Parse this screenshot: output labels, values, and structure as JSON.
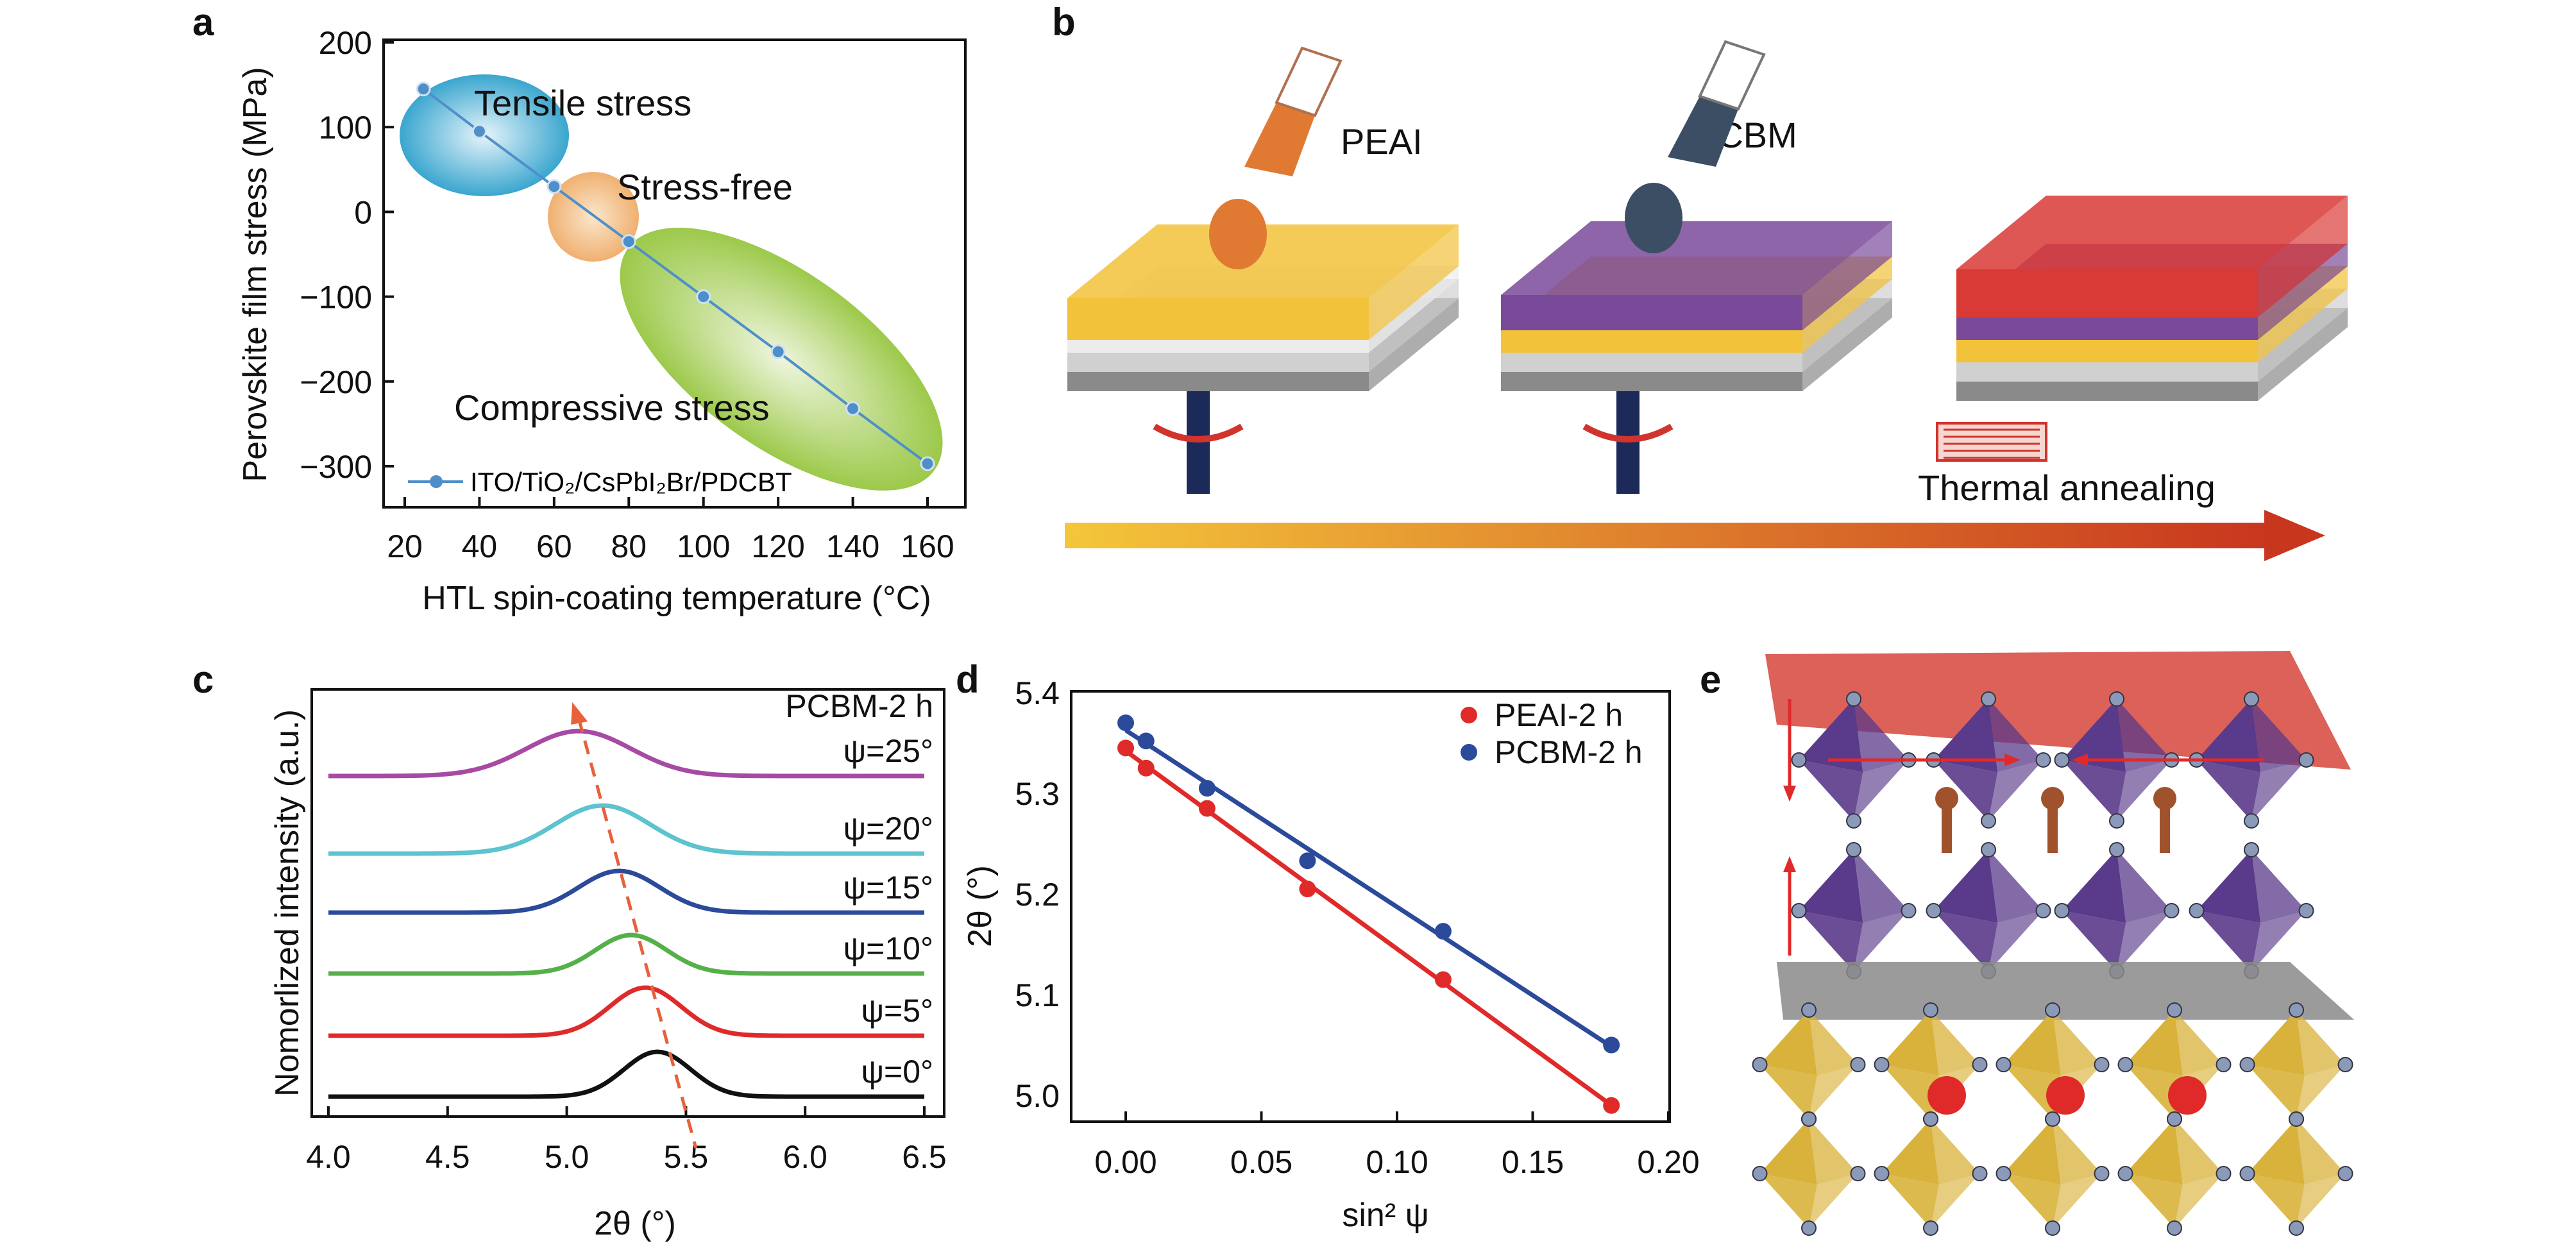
{
  "panel_labels": {
    "a": "a",
    "b": "b",
    "c": "c",
    "d": "d",
    "e": "e"
  },
  "chart_data": [
    {
      "panel": "a",
      "type": "line",
      "xlabel": "HTL spin-coating temperature (°C)",
      "ylabel": "Perovskite film stress (MPa)",
      "xlim": [
        15,
        170
      ],
      "ylim": [
        -350,
        200
      ],
      "xticks": [
        20,
        40,
        60,
        80,
        100,
        120,
        140,
        160
      ],
      "yticks": [
        200,
        100,
        0,
        -100,
        -200,
        -300
      ],
      "series": [
        {
          "name": "ITO/TiO₂/CsPbI₂Br/PDCBT",
          "color": "#4f8fc9",
          "x": [
            25,
            40,
            60,
            80,
            100,
            120,
            140,
            160
          ],
          "y": [
            145,
            95,
            30,
            -35,
            -100,
            -165,
            -232,
            -297
          ]
        }
      ],
      "annotations": {
        "tensile": "Tensile stress",
        "free": "Stress-free",
        "compressive": "Compressive stress"
      },
      "region_colors": {
        "tensile": "#3aa6cf",
        "free": "#f0b070",
        "compressive": "#9cc94a"
      },
      "legend": "bottom-left",
      "grid": false
    },
    {
      "panel": "c",
      "type": "line",
      "xlabel": "2θ (°)",
      "ylabel": "Nomorlized intensity (a.u.)",
      "xlim": [
        4.0,
        6.5
      ],
      "xticks": [
        "4.0",
        "4.5",
        "5.0",
        "5.5",
        "6.0",
        "6.5"
      ],
      "title_label": "PCBM-2 h",
      "series": [
        {
          "name": "ψ=25°",
          "color": "#a64aa4",
          "peak": 5.05
        },
        {
          "name": "ψ=20°",
          "color": "#5cc3cf",
          "peak": 5.15
        },
        {
          "name": "ψ=15°",
          "color": "#2c4a9a",
          "peak": 5.22
        },
        {
          "name": "ψ=10°",
          "color": "#55b04a",
          "peak": 5.27
        },
        {
          "name": "ψ=5°",
          "color": "#e02a2a",
          "peak": 5.33
        },
        {
          "name": "ψ=0°",
          "color": "#111111",
          "peak": 5.38
        }
      ],
      "trend_line_color": "#e8613c",
      "grid": false
    },
    {
      "panel": "d",
      "type": "scatter",
      "xlabel": "sin² ψ",
      "ylabel": "2θ (°)",
      "xlim": [
        -0.02,
        0.2
      ],
      "ylim": [
        4.975,
        5.4
      ],
      "xticks": [
        "0.00",
        "0.05",
        "0.10",
        "0.15",
        "0.20"
      ],
      "yticks": [
        "5.4",
        "5.3",
        "5.2",
        "5.1",
        "5.0"
      ],
      "x": [
        0.0,
        0.0075,
        0.03,
        0.067,
        0.117,
        0.179
      ],
      "series": [
        {
          "name": "PEAI-2 h",
          "color": "#e02a2a",
          "y": [
            5.345,
            5.325,
            5.285,
            5.205,
            5.115,
            4.99
          ]
        },
        {
          "name": "PCBM-2 h",
          "color": "#2c4a9a",
          "y": [
            5.37,
            5.352,
            5.305,
            5.233,
            5.163,
            5.05
          ]
        }
      ],
      "legend": "top-right",
      "grid": false
    }
  ],
  "panel_b": {
    "pipette1_label": "PEAI",
    "pipette2_label": "PCBM",
    "annealing_label": "Thermal annealing",
    "colors": {
      "peai": "#e07a32",
      "pcbm": "#3c4e64",
      "yellow": "#f2c23a",
      "purple": "#7a4a9a",
      "red": "#d93a36",
      "gray": "#a0a0a0",
      "spindle": "#1c2a5a"
    }
  },
  "panel_e": {
    "colors": {
      "top_plane": "#d23a30",
      "octa_upper": "#5a3a8a",
      "mid_plane": "#8a8a8a",
      "octa_lower": "#d8b23a",
      "cation": "#e02a2a",
      "anion": "#8a9ab8",
      "ligand": "#a0522d"
    }
  }
}
